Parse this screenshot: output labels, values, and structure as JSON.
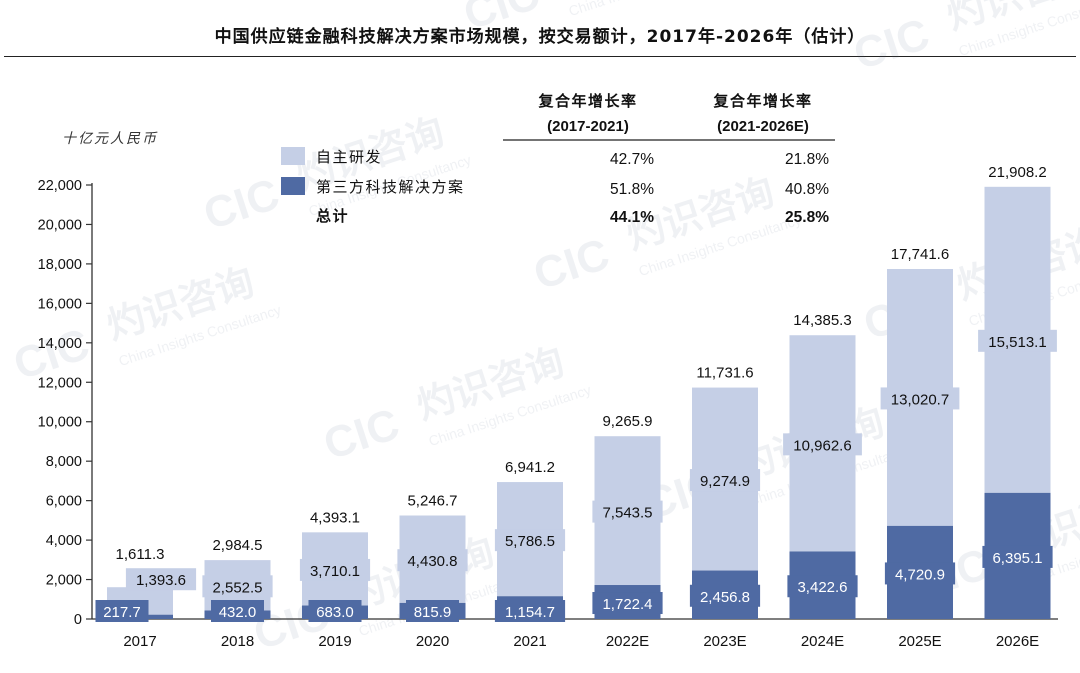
{
  "title": "中国供应链金融科技解决方案市场规模，按交易额计，2017年-2026年（估计）",
  "watermark": {
    "brand_cn": "灼识咨询",
    "logo": "CIC",
    "brand_en": "China Insights Consultancy"
  },
  "colors": {
    "self_dev": "#c5cfe6",
    "third_party": "#4f6aa3",
    "label_bg": "#c5cfe6",
    "axis": "#333333"
  },
  "cagr_table": {
    "headers": [
      "复合年增长率\n(2017-2021)",
      "复合年增长率\n(2021-2026E)"
    ],
    "rows": [
      {
        "label": "自主研发",
        "values": [
          "42.7%",
          "21.8%"
        ],
        "bold": false
      },
      {
        "label": "第三方科技解决方案",
        "values": [
          "51.8%",
          "40.8%"
        ],
        "bold": false
      },
      {
        "label": "总计",
        "values": [
          "44.1%",
          "25.8%"
        ],
        "bold": true
      }
    ]
  },
  "chart_data": {
    "type": "bar",
    "stacked": true,
    "unit_label": "十亿元人民币",
    "categories": [
      "2017",
      "2018",
      "2019",
      "2020",
      "2021",
      "2022E",
      "2023E",
      "2024E",
      "2025E",
      "2026E"
    ],
    "series": [
      {
        "name": "第三方科技解决方案",
        "values": [
          217.7,
          432.0,
          683.0,
          815.9,
          1154.7,
          1722.4,
          2456.8,
          3422.6,
          4720.9,
          6395.1
        ],
        "labels": [
          "217.7",
          "432.0",
          "683.0",
          "815.9",
          "1,154.7",
          "1,722.4",
          "2,456.8",
          "3,422.6",
          "4,720.9",
          "6,395.1"
        ]
      },
      {
        "name": "自主研发",
        "values": [
          1393.6,
          2552.5,
          3710.1,
          4430.8,
          5786.5,
          7543.5,
          9274.9,
          10962.6,
          13020.7,
          15513.1
        ],
        "labels": [
          "1,393.6",
          "2,552.5",
          "3,710.1",
          "4,430.8",
          "5,786.5",
          "7,543.5",
          "9,274.9",
          "10,962.6",
          "13,020.7",
          "15,513.1"
        ]
      }
    ],
    "totals": [
      1611.3,
      2984.5,
      4393.1,
      5246.7,
      6941.2,
      9265.9,
      11731.6,
      14385.3,
      17741.6,
      21908.2
    ],
    "total_labels": [
      "1,611.3",
      "2,984.5",
      "4,393.1",
      "5,246.7",
      "6,941.2",
      "9,265.9",
      "11,731.6",
      "14,385.3",
      "17,741.6",
      "21,908.2"
    ],
    "ylim": [
      0,
      22000
    ],
    "yticks": [
      0,
      2000,
      4000,
      6000,
      8000,
      10000,
      12000,
      14000,
      16000,
      18000,
      20000,
      22000
    ],
    "ytick_labels": [
      "0",
      "2,000",
      "4,000",
      "6,000",
      "8,000",
      "10,000",
      "12,000",
      "14,000",
      "16,000",
      "18,000",
      "20,000",
      "22,000"
    ],
    "legend_position": "top-left",
    "grid": false
  }
}
